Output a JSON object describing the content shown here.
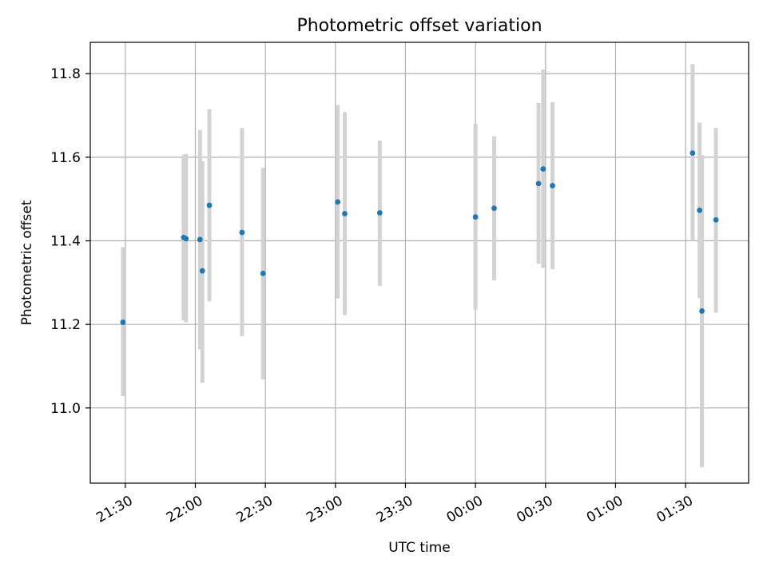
{
  "chart_data": {
    "type": "scatter",
    "title": "Photometric offset variation",
    "xlabel": "UTC time",
    "ylabel": "Photometric offset",
    "xlim": [
      "21:15",
      "01:57"
    ],
    "ylim": [
      10.82,
      11.875
    ],
    "x_ticks": [
      "21:30",
      "22:00",
      "22:30",
      "23:00",
      "23:30",
      "00:00",
      "00:30",
      "01:00",
      "01:30"
    ],
    "y_ticks": [
      11.0,
      11.2,
      11.4,
      11.6,
      11.8
    ],
    "grid": true,
    "point_color": "#1f77b4",
    "errorbar_color": "#d3d3d3",
    "points": [
      {
        "time": "21:29",
        "value": 11.205,
        "err_low": 11.028,
        "err_high": 11.385
      },
      {
        "time": "21:55",
        "value": 11.408,
        "err_low": 11.21,
        "err_high": 11.605
      },
      {
        "time": "21:56",
        "value": 11.405,
        "err_low": 11.205,
        "err_high": 11.608
      },
      {
        "time": "22:02",
        "value": 11.403,
        "err_low": 11.14,
        "err_high": 11.665
      },
      {
        "time": "22:03",
        "value": 11.328,
        "err_low": 11.06,
        "err_high": 11.59
      },
      {
        "time": "22:06",
        "value": 11.485,
        "err_low": 11.255,
        "err_high": 11.715
      },
      {
        "time": "22:20",
        "value": 11.42,
        "err_low": 11.172,
        "err_high": 11.67
      },
      {
        "time": "22:29",
        "value": 11.322,
        "err_low": 11.068,
        "err_high": 11.575
      },
      {
        "time": "23:01",
        "value": 11.493,
        "err_low": 11.262,
        "err_high": 11.725
      },
      {
        "time": "23:04",
        "value": 11.465,
        "err_low": 11.222,
        "err_high": 11.708
      },
      {
        "time": "23:19",
        "value": 11.467,
        "err_low": 11.292,
        "err_high": 11.64
      },
      {
        "time": "00:00",
        "value": 11.457,
        "err_low": 11.235,
        "err_high": 11.68
      },
      {
        "time": "00:08",
        "value": 11.478,
        "err_low": 11.305,
        "err_high": 11.65
      },
      {
        "time": "00:27",
        "value": 11.537,
        "err_low": 11.345,
        "err_high": 11.73
      },
      {
        "time": "00:29",
        "value": 11.572,
        "err_low": 11.335,
        "err_high": 11.81
      },
      {
        "time": "00:33",
        "value": 11.532,
        "err_low": 11.332,
        "err_high": 11.732
      },
      {
        "time": "01:33",
        "value": 11.61,
        "err_low": 11.4,
        "err_high": 11.823
      },
      {
        "time": "01:36",
        "value": 11.473,
        "err_low": 11.263,
        "err_high": 11.683
      },
      {
        "time": "01:37",
        "value": 11.232,
        "err_low": 10.858,
        "err_high": 11.605
      },
      {
        "time": "01:43",
        "value": 11.45,
        "err_low": 11.228,
        "err_high": 11.67
      }
    ]
  }
}
